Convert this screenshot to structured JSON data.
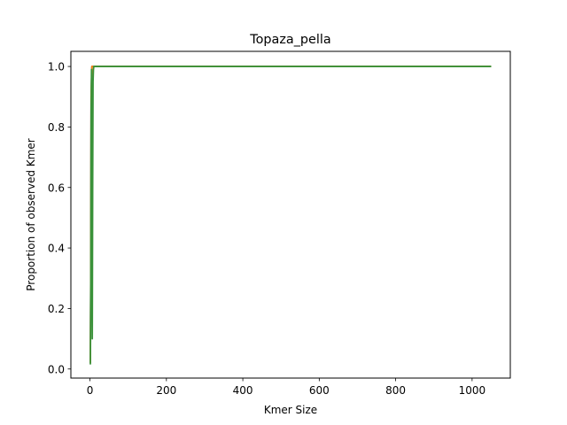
{
  "chart_data": {
    "type": "line",
    "title": "Topaza_pella",
    "xlabel": "Kmer Size",
    "ylabel": "Proportion of observed Kmer",
    "xlim": [
      -50,
      1100
    ],
    "ylim": [
      -0.03,
      1.05
    ],
    "xticks": [
      0,
      200,
      400,
      600,
      800,
      1000
    ],
    "yticks": [
      0.0,
      0.2,
      0.4,
      0.6,
      0.8,
      1.0
    ],
    "xtick_labels": [
      "0",
      "200",
      "400",
      "600",
      "800",
      "1000"
    ],
    "ytick_labels": [
      "0.0",
      "0.2",
      "0.4",
      "0.6",
      "0.8",
      "1.0"
    ],
    "grid": false,
    "series": [
      {
        "color": "#1f77b4",
        "x": [
          1,
          2,
          3,
          5,
          7,
          9,
          12,
          1050
        ],
        "y": [
          0.02,
          0.3,
          0.9,
          1.0,
          1.0,
          1.0,
          1.0,
          1.0
        ]
      },
      {
        "color": "#ff7f0e",
        "x": [
          1,
          2,
          3,
          5,
          7,
          9,
          12,
          1050
        ],
        "y": [
          0.02,
          0.3,
          0.9,
          1.0,
          1.0,
          1.0,
          1.0,
          1.0
        ]
      },
      {
        "color": "#3a923a",
        "x": [
          1,
          2,
          3,
          4,
          5,
          6,
          7,
          8,
          9,
          10,
          12,
          1050
        ],
        "y": [
          0.015,
          0.25,
          0.85,
          0.99,
          0.5,
          0.1,
          0.6,
          0.95,
          0.99,
          1.0,
          1.0,
          1.0
        ]
      }
    ]
  }
}
